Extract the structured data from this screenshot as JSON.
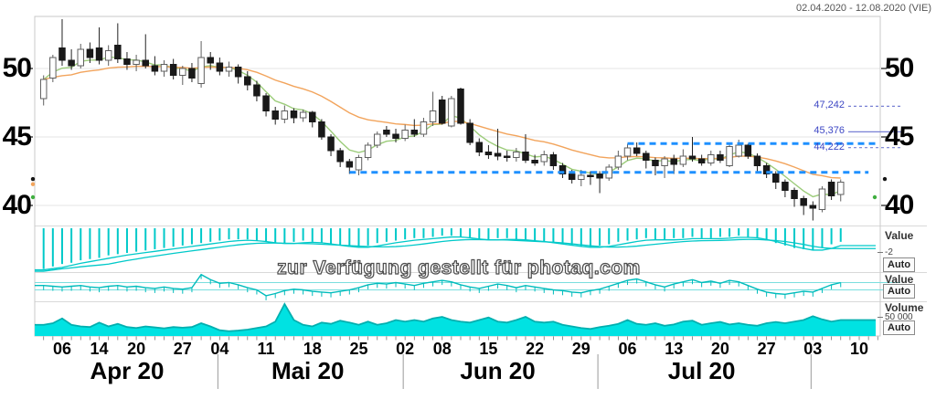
{
  "header": {
    "date_range": "02.04.2020 - 12.08.2020 (VIE)"
  },
  "watermark": "zur Verfügung gestellt für photaq.com",
  "colors": {
    "cyan_indicator": "#00c9c9",
    "cyan_fill": "#00e2e2",
    "ma_fast_green": "#9ccc7a",
    "ma_slow_orange": "#f2a45c",
    "channel_blue": "#1e90ff",
    "level_blue": "#3d47c4",
    "candle_down": "#191919",
    "candle_up_border": "#5f5f5f",
    "grid": "#e6e6e6"
  },
  "chart_data": {
    "type": "candlestick",
    "y_axis": {
      "ticks": [
        {
          "label": "50",
          "value": 50
        },
        {
          "label": "45",
          "value": 45
        },
        {
          "label": "40",
          "value": 40
        }
      ],
      "range": [
        38.5,
        53.8
      ]
    },
    "x_axis": {
      "day_ticks": [
        {
          "label": "06",
          "index": 2
        },
        {
          "label": "14",
          "index": 6
        },
        {
          "label": "20",
          "index": 10
        },
        {
          "label": "27",
          "index": 15
        },
        {
          "label": "04",
          "index": 19
        },
        {
          "label": "11",
          "index": 24
        },
        {
          "label": "18",
          "index": 29
        },
        {
          "label": "25",
          "index": 34
        },
        {
          "label": "02",
          "index": 39
        },
        {
          "label": "08",
          "index": 43
        },
        {
          "label": "15",
          "index": 48
        },
        {
          "label": "22",
          "index": 53
        },
        {
          "label": "29",
          "index": 58
        },
        {
          "label": "06",
          "index": 63
        },
        {
          "label": "13",
          "index": 68
        },
        {
          "label": "20",
          "index": 73
        },
        {
          "label": "27",
          "index": 78
        },
        {
          "label": "03",
          "index": 83
        },
        {
          "label": "10",
          "index": 88
        }
      ],
      "months": [
        {
          "label": "Apr 20",
          "start_index": 0,
          "end_index": 19
        },
        {
          "label": "Mai 20",
          "start_index": 19,
          "end_index": 39
        },
        {
          "label": "Jun 20",
          "start_index": 39,
          "end_index": 60
        },
        {
          "label": "Jul 20",
          "start_index": 60,
          "end_index": 83
        },
        {
          "label": "",
          "start_index": 83,
          "end_index": 91
        }
      ]
    },
    "candles": [
      [
        47.8,
        49.5,
        47.3,
        49.2
      ],
      [
        49.3,
        51.0,
        49.0,
        50.8
      ],
      [
        51.5,
        53.6,
        50.2,
        50.6
      ],
      [
        50.6,
        51.4,
        49.9,
        50.2
      ],
      [
        50.2,
        51.8,
        50.0,
        51.4
      ],
      [
        51.4,
        51.9,
        50.4,
        50.8
      ],
      [
        51.5,
        53.0,
        50.3,
        50.6
      ],
      [
        50.6,
        51.7,
        50.2,
        51.3
      ],
      [
        51.7,
        53.3,
        50.4,
        50.7
      ],
      [
        50.7,
        51.2,
        49.9,
        50.3
      ],
      [
        50.3,
        51.0,
        49.8,
        50.6
      ],
      [
        50.6,
        52.5,
        50.0,
        50.2
      ],
      [
        50.2,
        50.9,
        49.5,
        49.8
      ],
      [
        49.8,
        50.6,
        49.4,
        50.3
      ],
      [
        50.3,
        50.7,
        49.2,
        49.5
      ],
      [
        49.5,
        50.2,
        48.8,
        50.0
      ],
      [
        50.0,
        50.4,
        49.0,
        49.3
      ],
      [
        48.9,
        52.0,
        48.6,
        50.8
      ],
      [
        50.8,
        51.2,
        49.9,
        50.4
      ],
      [
        50.4,
        50.8,
        49.5,
        49.8
      ],
      [
        49.8,
        50.5,
        49.4,
        50.1
      ],
      [
        50.1,
        50.3,
        48.9,
        49.4
      ],
      [
        49.4,
        49.8,
        48.4,
        48.8
      ],
      [
        48.8,
        49.1,
        47.6,
        48.0
      ],
      [
        48.0,
        48.2,
        46.5,
        46.9
      ],
      [
        46.9,
        47.2,
        45.9,
        46.3
      ],
      [
        46.3,
        47.3,
        46.0,
        46.9
      ],
      [
        46.9,
        47.1,
        46.0,
        46.4
      ],
      [
        46.4,
        47.0,
        46.1,
        46.8
      ],
      [
        46.8,
        46.9,
        45.7,
        46.1
      ],
      [
        46.1,
        46.3,
        44.8,
        45.0
      ],
      [
        45.0,
        45.2,
        43.6,
        44.0
      ],
      [
        44.0,
        44.2,
        42.8,
        43.2
      ],
      [
        43.2,
        43.4,
        42.3,
        42.8
      ],
      [
        42.6,
        43.7,
        42.2,
        43.5
      ],
      [
        43.5,
        44.6,
        43.3,
        44.4
      ],
      [
        44.4,
        45.4,
        44.2,
        45.2
      ],
      [
        45.5,
        45.8,
        45.0,
        45.2
      ],
      [
        45.2,
        45.6,
        44.6,
        44.9
      ],
      [
        44.9,
        45.9,
        44.7,
        45.5
      ],
      [
        45.5,
        46.3,
        45.0,
        45.2
      ],
      [
        45.2,
        46.4,
        45.0,
        46.1
      ],
      [
        46.1,
        48.3,
        45.8,
        46.9
      ],
      [
        47.7,
        48.0,
        45.9,
        46.0
      ],
      [
        45.8,
        48.0,
        45.7,
        47.8
      ],
      [
        48.5,
        48.6,
        45.9,
        46.0
      ],
      [
        46.0,
        46.3,
        44.4,
        44.6
      ],
      [
        44.6,
        44.9,
        43.6,
        43.9
      ],
      [
        43.9,
        44.4,
        43.4,
        43.7
      ],
      [
        43.8,
        45.6,
        43.3,
        43.6
      ],
      [
        43.6,
        44.0,
        43.2,
        43.5
      ],
      [
        43.5,
        44.2,
        43.2,
        43.9
      ],
      [
        43.9,
        45.2,
        43.1,
        43.3
      ],
      [
        43.3,
        43.7,
        42.9,
        43.1
      ],
      [
        43.2,
        44.0,
        42.9,
        43.7
      ],
      [
        43.7,
        43.9,
        42.6,
        42.9
      ],
      [
        42.9,
        43.1,
        42.0,
        42.3
      ],
      [
        42.3,
        42.6,
        41.6,
        41.9
      ],
      [
        41.9,
        42.6,
        41.4,
        42.2
      ],
      [
        42.2,
        42.5,
        41.5,
        42.1
      ],
      [
        42.3,
        42.5,
        40.9,
        42.0
      ],
      [
        42.0,
        43.0,
        41.8,
        42.8
      ],
      [
        42.8,
        44.0,
        42.6,
        43.6
      ],
      [
        43.6,
        44.5,
        43.3,
        44.2
      ],
      [
        44.2,
        44.6,
        43.6,
        43.8
      ],
      [
        43.8,
        44.0,
        42.7,
        43.3
      ],
      [
        43.3,
        43.5,
        42.2,
        42.9
      ],
      [
        42.9,
        43.6,
        42.0,
        43.4
      ],
      [
        43.4,
        43.7,
        42.3,
        43.0
      ],
      [
        43.0,
        44.1,
        42.8,
        43.6
      ],
      [
        43.6,
        45.0,
        43.2,
        43.4
      ],
      [
        43.4,
        43.7,
        42.9,
        43.1
      ],
      [
        43.1,
        44.0,
        42.9,
        43.7
      ],
      [
        43.7,
        44.0,
        43.1,
        43.3
      ],
      [
        42.9,
        44.6,
        42.8,
        44.3
      ],
      [
        43.6,
        44.8,
        43.5,
        44.4
      ],
      [
        44.4,
        44.5,
        43.4,
        43.6
      ],
      [
        43.6,
        43.8,
        42.5,
        42.9
      ],
      [
        42.9,
        43.1,
        42.0,
        42.3
      ],
      [
        42.3,
        42.5,
        41.2,
        41.7
      ],
      [
        41.7,
        41.9,
        40.6,
        41.1
      ],
      [
        41.1,
        41.3,
        39.9,
        40.5
      ],
      [
        40.5,
        40.7,
        39.3,
        40.0
      ],
      [
        40.0,
        40.3,
        38.9,
        39.8
      ],
      [
        39.7,
        41.4,
        39.5,
        41.2
      ],
      [
        41.7,
        41.9,
        40.4,
        40.7
      ],
      [
        40.8,
        41.9,
        40.3,
        41.7
      ]
    ],
    "moving_averages": [
      {
        "name": "fast",
        "period": 5,
        "color": "#9ccc7a"
      },
      {
        "name": "slow",
        "period": 20,
        "color": "#f2a45c"
      }
    ],
    "annotations": {
      "levels": [
        {
          "label": "47,242",
          "value": 47.242,
          "style": "dashed"
        },
        {
          "label": "45,376",
          "value": 45.376,
          "style": "solid"
        },
        {
          "label": "44,222",
          "value": 44.222,
          "style": "dashed"
        }
      ],
      "channel": {
        "upper": {
          "value": 44.52,
          "from_index": 63,
          "to_index": 90
        },
        "lower": {
          "value": 42.42,
          "from_index": 33,
          "to_index": 89
        }
      },
      "edge_markers": {
        "left": [
          {
            "color": "#161616",
            "value": 41.93
          },
          {
            "color": "#f2a45c",
            "value": 41.55
          },
          {
            "color": "#3fae3f",
            "value": 40.6
          }
        ],
        "right": [
          {
            "color": "#161616",
            "value": 41.93
          },
          {
            "color": "#3fae3f",
            "value": 40.6
          }
        ]
      }
    },
    "panels": [
      {
        "title": "Value",
        "scale_label": "-2",
        "button_label": "Auto",
        "bars": [
          3.3,
          3.1,
          2.9,
          2.8,
          2.6,
          2.5,
          2.4,
          2.2,
          2.1,
          2.0,
          1.9,
          1.8,
          1.7,
          1.6,
          1.5,
          1.4,
          1.3,
          1.2,
          1.1,
          1.0,
          0.9,
          0.9,
          0.9,
          1.0,
          1.1,
          1.2,
          1.2,
          1.1,
          1.0,
          1.1,
          1.2,
          1.3,
          1.4,
          1.5,
          1.5,
          1.4,
          1.2,
          1.1,
          1.0,
          0.9,
          0.8,
          0.8,
          0.7,
          0.6,
          0.6,
          0.7,
          0.8,
          0.9,
          0.9,
          0.8,
          0.8,
          0.9,
          0.9,
          1.0,
          1.1,
          1.2,
          1.3,
          1.4,
          1.5,
          1.5,
          1.4,
          1.3,
          1.1,
          1.0,
          0.9,
          0.8,
          0.9,
          0.9,
          0.8,
          0.8,
          0.7,
          0.8,
          0.8,
          0.7,
          0.7,
          0.6,
          0.7,
          0.8,
          1.0,
          1.2,
          1.4,
          1.6,
          1.7,
          1.8,
          1.6,
          1.3,
          1.1
        ]
      },
      {
        "title": "Value",
        "scale_label": "",
        "button_label": "Auto",
        "values": [
          0.1,
          0,
          -0.1,
          0,
          0.1,
          -0.1,
          -0.2,
          0,
          0.1,
          -0.1,
          0,
          -0.2,
          -0.3,
          -0.1,
          -0.3,
          -0.4,
          -0.2,
          1.6,
          0.9,
          0.4,
          0.5,
          0.2,
          -0.2,
          -0.5,
          -1.3,
          -1.0,
          -0.6,
          -0.4,
          -0.5,
          -0.7,
          -0.8,
          -0.9,
          -0.7,
          -0.5,
          -0.2,
          0.2,
          0.4,
          0.3,
          0.5,
          0.3,
          0.1,
          0.4,
          0.6,
          0.8,
          0.6,
          0.2,
          -0.1,
          -0.3,
          0,
          0.3,
          0.1,
          -0.2,
          0.1,
          -0.1,
          -0.3,
          -0.5,
          -0.6,
          -0.8,
          -0.9,
          -0.6,
          -0.4,
          0,
          0.4,
          0.8,
          1.0,
          0.6,
          0.2,
          -0.1,
          0.3,
          0.6,
          0.9,
          0.5,
          0.7,
          0.4,
          0.8,
          0.6,
          0.1,
          -0.4,
          -0.8,
          -1.0,
          -1.1,
          -0.9,
          -0.7,
          -0.8,
          -0.3,
          0.2,
          0.5
        ]
      },
      {
        "title": "Volume",
        "scale_label": "50 000",
        "button_label": "Auto",
        "values": [
          0.35,
          0.4,
          0.55,
          0.35,
          0.3,
          0.28,
          0.42,
          0.3,
          0.38,
          0.28,
          0.25,
          0.3,
          0.27,
          0.24,
          0.28,
          0.26,
          0.28,
          0.4,
          0.3,
          0.18,
          0.15,
          0.17,
          0.2,
          0.25,
          0.3,
          0.45,
          1.0,
          0.5,
          0.35,
          0.3,
          0.42,
          0.38,
          0.48,
          0.42,
          0.35,
          0.45,
          0.35,
          0.4,
          0.5,
          0.45,
          0.5,
          0.45,
          0.55,
          0.6,
          0.5,
          0.45,
          0.42,
          0.5,
          0.58,
          0.45,
          0.42,
          0.5,
          0.6,
          0.45,
          0.42,
          0.45,
          0.35,
          0.3,
          0.25,
          0.22,
          0.28,
          0.32,
          0.38,
          0.5,
          0.38,
          0.35,
          0.4,
          0.32,
          0.36,
          0.45,
          0.48,
          0.35,
          0.4,
          0.44,
          0.36,
          0.4,
          0.35,
          0.32,
          0.4,
          0.44,
          0.4,
          0.45,
          0.5,
          0.62,
          0.52,
          0.45,
          0.5
        ]
      }
    ]
  }
}
